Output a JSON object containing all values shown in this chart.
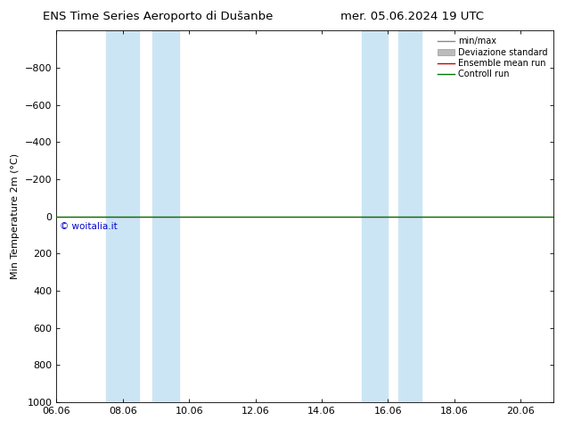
{
  "title": "ENS Time Series Aeroporto di Dušanbe",
  "title_right": "mer. 05.06.2024 19 UTC",
  "ylabel": "Min Temperature 2m (°C)",
  "ylim_min": -1000,
  "ylim_max": 1000,
  "yticks": [
    -800,
    -600,
    -400,
    -200,
    0,
    200,
    400,
    600,
    800,
    1000
  ],
  "xtick_positions": [
    6,
    8,
    10,
    12,
    14,
    16,
    18,
    20
  ],
  "xtick_labels": [
    "06.06",
    "08.06",
    "10.06",
    "12.06",
    "14.06",
    "16.06",
    "18.06",
    "20.06"
  ],
  "watermark": "© woitalia.it",
  "watermark_color": "#0000cc",
  "shaded_regions": [
    {
      "xstart": 7.5,
      "xend": 8.5
    },
    {
      "xstart": 8.9,
      "xend": 9.7
    },
    {
      "xstart": 15.2,
      "xend": 16.0
    },
    {
      "xstart": 16.3,
      "xend": 17.0
    }
  ],
  "shaded_color": "#cce5f5",
  "control_run_y": 0.0,
  "control_run_color": "#007700",
  "ensemble_mean_color": "#cc0000",
  "std_fill_color": "#bbbbbb",
  "minmax_color": "#888888",
  "legend_entries": [
    "min/max",
    "Deviazione standard",
    "Ensemble mean run",
    "Controll run"
  ],
  "background_color": "#ffffff",
  "title_fontsize": 9.5,
  "axis_fontsize": 8,
  "legend_fontsize": 7,
  "ylabel_fontsize": 8
}
